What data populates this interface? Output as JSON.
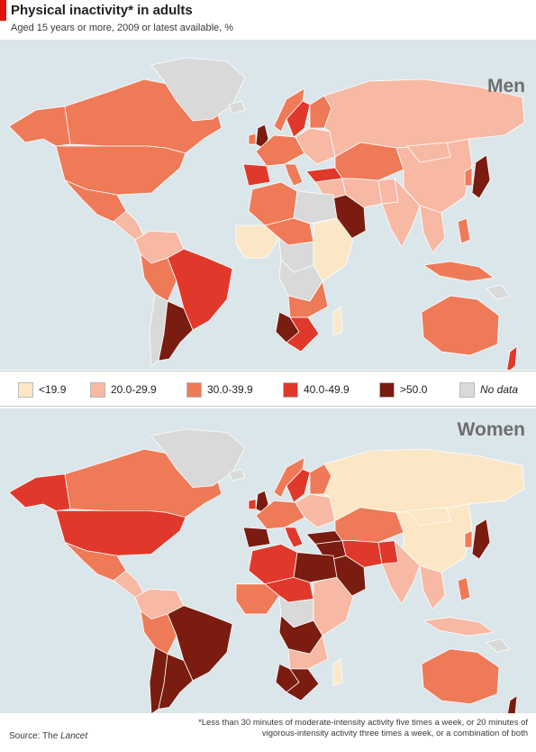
{
  "header": {
    "title": "Physical inactivity* in adults",
    "subtitle": "Aged 15 years or more, 2009 or latest available, %"
  },
  "colors": {
    "accent": "#e3120b",
    "ocean": "#dbe6ea",
    "no_data": "#d9d9d9",
    "border": "#ffffff"
  },
  "legend": [
    {
      "label": "<19.9",
      "color": "#fbe7c6",
      "italic": false
    },
    {
      "label": "20.0-29.9",
      "color": "#f7b9a4",
      "italic": false
    },
    {
      "label": "30.0-39.9",
      "color": "#ee7a58",
      "italic": false
    },
    {
      "label": "40.0-49.9",
      "color": "#e0392b",
      "italic": false
    },
    {
      "label": ">50.0",
      "color": "#7a1c10",
      "italic": false
    },
    {
      "label": "No data",
      "color": "#d9d9d9",
      "italic": true
    }
  ],
  "maps": {
    "men": {
      "label": "Men",
      "regions": [
        {
          "name": "Alaska",
          "category": 2
        },
        {
          "name": "Canada",
          "category": 2
        },
        {
          "name": "Greenland",
          "category": 5
        },
        {
          "name": "United States",
          "category": 2
        },
        {
          "name": "Mexico",
          "category": 2
        },
        {
          "name": "Central America",
          "category": 1
        },
        {
          "name": "Colombia/Venezuela",
          "category": 1
        },
        {
          "name": "Brazil",
          "category": 3
        },
        {
          "name": "Peru/Bolivia",
          "category": 2
        },
        {
          "name": "Chile",
          "category": 5
        },
        {
          "name": "Argentina",
          "category": 4
        },
        {
          "name": "Iceland",
          "category": 5
        },
        {
          "name": "United Kingdom",
          "category": 4
        },
        {
          "name": "Ireland",
          "category": 2
        },
        {
          "name": "Norway",
          "category": 2
        },
        {
          "name": "Sweden",
          "category": 3
        },
        {
          "name": "Finland",
          "category": 2
        },
        {
          "name": "Western Europe",
          "category": 2
        },
        {
          "name": "Iberia",
          "category": 3
        },
        {
          "name": "Italy",
          "category": 2
        },
        {
          "name": "Eastern Europe",
          "category": 1
        },
        {
          "name": "Russia",
          "category": 1
        },
        {
          "name": "Turkey",
          "category": 3
        },
        {
          "name": "Central Asia",
          "category": 2
        },
        {
          "name": "China",
          "category": 1
        },
        {
          "name": "Mongolia",
          "category": 1
        },
        {
          "name": "Japan",
          "category": 4
        },
        {
          "name": "Korea",
          "category": 2
        },
        {
          "name": "Middle East",
          "category": 1
        },
        {
          "name": "Saudi Arabia",
          "category": 4
        },
        {
          "name": "Iran",
          "category": 1
        },
        {
          "name": "Pakistan",
          "category": 1
        },
        {
          "name": "India",
          "category": 1
        },
        {
          "name": "Southeast Asia",
          "category": 1
        },
        {
          "name": "Indonesia",
          "category": 2
        },
        {
          "name": "Philippines",
          "category": 2
        },
        {
          "name": "Maghreb",
          "category": 2
        },
        {
          "name": "Libya/Egypt",
          "category": 5
        },
        {
          "name": "West Africa",
          "category": 0
        },
        {
          "name": "Sahel",
          "category": 2
        },
        {
          "name": "Central Africa",
          "category": 5
        },
        {
          "name": "East Africa",
          "category": 0
        },
        {
          "name": "DR Congo",
          "category": 5
        },
        {
          "name": "Angola/Zambia",
          "category": 2
        },
        {
          "name": "Namibia",
          "category": 4
        },
        {
          "name": "South Africa",
          "category": 3
        },
        {
          "name": "Madagascar",
          "category": 0
        },
        {
          "name": "Australia",
          "category": 2
        },
        {
          "name": "New Zealand",
          "category": 3
        },
        {
          "name": "Papua New Guinea",
          "category": 5
        }
      ]
    },
    "women": {
      "label": "Women",
      "regions": [
        {
          "name": "Alaska",
          "category": 3
        },
        {
          "name": "Canada",
          "category": 2
        },
        {
          "name": "Greenland",
          "category": 5
        },
        {
          "name": "United States",
          "category": 3
        },
        {
          "name": "Mexico",
          "category": 2
        },
        {
          "name": "Central America",
          "category": 1
        },
        {
          "name": "Colombia/Venezuela",
          "category": 1
        },
        {
          "name": "Brazil",
          "category": 4
        },
        {
          "name": "Peru/Bolivia",
          "category": 2
        },
        {
          "name": "Chile",
          "category": 4
        },
        {
          "name": "Argentina",
          "category": 4
        },
        {
          "name": "Iceland",
          "category": 5
        },
        {
          "name": "United Kingdom",
          "category": 4
        },
        {
          "name": "Ireland",
          "category": 3
        },
        {
          "name": "Norway",
          "category": 2
        },
        {
          "name": "Sweden",
          "category": 3
        },
        {
          "name": "Finland",
          "category": 2
        },
        {
          "name": "Western Europe",
          "category": 2
        },
        {
          "name": "Iberia",
          "category": 4
        },
        {
          "name": "Italy",
          "category": 3
        },
        {
          "name": "Eastern Europe",
          "category": 1
        },
        {
          "name": "Russia",
          "category": 0
        },
        {
          "name": "Turkey",
          "category": 4
        },
        {
          "name": "Central Asia",
          "category": 2
        },
        {
          "name": "China",
          "category": 0
        },
        {
          "name": "Mongolia",
          "category": 0
        },
        {
          "name": "Japan",
          "category": 4
        },
        {
          "name": "Korea",
          "category": 2
        },
        {
          "name": "Middle East",
          "category": 4
        },
        {
          "name": "Saudi Arabia",
          "category": 4
        },
        {
          "name": "Iran",
          "category": 3
        },
        {
          "name": "Pakistan",
          "category": 3
        },
        {
          "name": "India",
          "category": 1
        },
        {
          "name": "Southeast Asia",
          "category": 1
        },
        {
          "name": "Indonesia",
          "category": 1
        },
        {
          "name": "Philippines",
          "category": 2
        },
        {
          "name": "Maghreb",
          "category": 3
        },
        {
          "name": "Libya/Egypt",
          "category": 4
        },
        {
          "name": "West Africa",
          "category": 2
        },
        {
          "name": "Sahel",
          "category": 3
        },
        {
          "name": "Central Africa",
          "category": 5
        },
        {
          "name": "East Africa",
          "category": 1
        },
        {
          "name": "DR Congo",
          "category": 4
        },
        {
          "name": "Angola/Zambia",
          "category": 1
        },
        {
          "name": "Namibia",
          "category": 4
        },
        {
          "name": "South Africa",
          "category": 4
        },
        {
          "name": "Madagascar",
          "category": 0
        },
        {
          "name": "Australia",
          "category": 2
        },
        {
          "name": "New Zealand",
          "category": 4
        },
        {
          "name": "Papua New Guinea",
          "category": 5
        }
      ]
    }
  },
  "source": {
    "prefix": "Source: The ",
    "publication": "Lancet"
  },
  "footnote": "*Less than 30 minutes of moderate-intensity activity five times a week, or 20 minutes of vigorous-intensity activity three times a week, or a combination of both"
}
